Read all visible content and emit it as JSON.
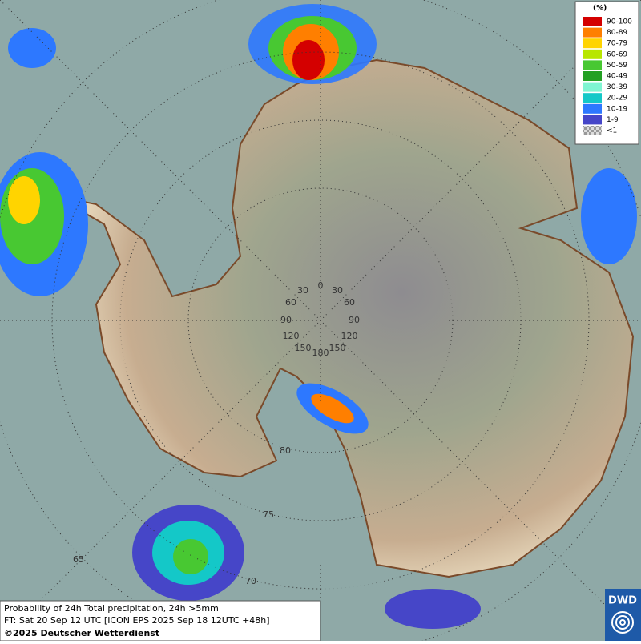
{
  "legend": {
    "title": "(%)",
    "items": [
      {
        "label": "90-100",
        "color": "#d40000"
      },
      {
        "label": "80-89",
        "color": "#ff7f00"
      },
      {
        "label": "70-79",
        "color": "#ffd400"
      },
      {
        "label": "60-69",
        "color": "#b8e600"
      },
      {
        "label": "50-59",
        "color": "#48c832"
      },
      {
        "label": "40-49",
        "color": "#23a023"
      },
      {
        "label": "30-39",
        "color": "#7ff5d2"
      },
      {
        "label": "20-29",
        "color": "#14c8c8"
      },
      {
        "label": "10-19",
        "color": "#2d78ff"
      },
      {
        "label": "1-9",
        "color": "#4646c8"
      },
      {
        "label": "<1",
        "color": "#b4b4b4"
      }
    ]
  },
  "graticule": {
    "labels": [
      "0",
      "30",
      "30",
      "60",
      "60",
      "90",
      "90",
      "120",
      "120",
      "150",
      "150",
      "180",
      "80",
      "75",
      "70",
      "65"
    ]
  },
  "footer": {
    "line1": "Probability of 24h Total precipitation, 24h >5mm",
    "line2": "FT: Sat 20 Sep 12 UTC [ICON EPS 2025 Sep 18 12UTC +48h]",
    "line3": "©2025 Deutscher Wetterdienst"
  },
  "logo": {
    "text": "DWD"
  }
}
